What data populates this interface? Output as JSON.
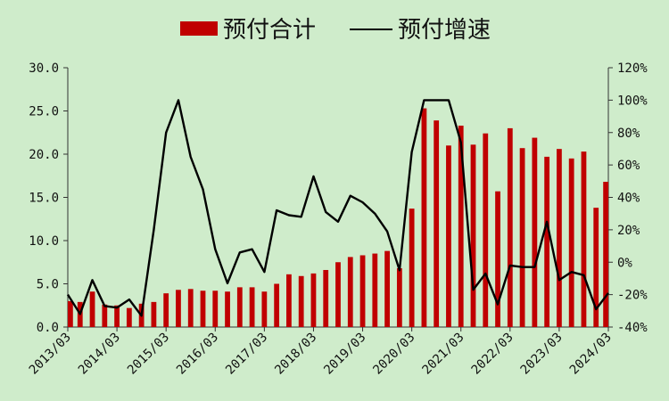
{
  "chart_data": {
    "type": "bar+line",
    "legend": {
      "position": "top",
      "items": [
        "预付合计",
        "预付增速"
      ]
    },
    "categories": [
      "2013/03",
      "2013/06",
      "2013/09",
      "2013/12",
      "2014/03",
      "2014/06",
      "2014/09",
      "2014/12",
      "2015/03",
      "2015/06",
      "2015/09",
      "2015/12",
      "2016/03",
      "2016/06",
      "2016/09",
      "2016/12",
      "2017/03",
      "2017/06",
      "2017/09",
      "2017/12",
      "2018/03",
      "2018/06",
      "2018/09",
      "2018/12",
      "2019/03",
      "2019/06",
      "2019/09",
      "2019/12",
      "2020/03",
      "2020/06",
      "2020/09",
      "2020/12",
      "2021/03",
      "2021/06",
      "2021/09",
      "2021/12",
      "2022/03",
      "2022/06",
      "2022/09",
      "2022/12",
      "2023/03",
      "2023/06",
      "2023/09",
      "2023/12",
      "2024/03"
    ],
    "x_tick_labels": [
      "2013/03",
      "2014/03",
      "2015/03",
      "2016/03",
      "2017/03",
      "2018/03",
      "2019/03",
      "2020/03",
      "2021/03",
      "2022/03",
      "2023/03",
      "2024/03"
    ],
    "series": [
      {
        "name": "预付合计",
        "type": "bar",
        "axis": "left",
        "color": "#c00000",
        "values": [
          3.0,
          2.9,
          4.1,
          2.6,
          2.5,
          2.2,
          2.7,
          2.9,
          3.9,
          4.3,
          4.4,
          4.2,
          4.2,
          4.1,
          4.6,
          4.6,
          4.1,
          5.0,
          6.1,
          5.9,
          6.2,
          6.6,
          7.5,
          8.1,
          8.3,
          8.5,
          8.8,
          6.8,
          13.7,
          25.3,
          23.9,
          21.0,
          23.3,
          21.1,
          22.4,
          15.7,
          23.0,
          20.7,
          21.9,
          19.7,
          20.6,
          19.5,
          20.3,
          13.8,
          16.8
        ]
      },
      {
        "name": "预付增速",
        "type": "line",
        "axis": "right",
        "color": "#000000",
        "values": [
          -20,
          -32,
          -11,
          -27,
          -28,
          -23,
          -33,
          20,
          80,
          100,
          65,
          45,
          8,
          -13,
          6,
          8,
          -6,
          32,
          29,
          28,
          53,
          31,
          25,
          41,
          37,
          30,
          19,
          -5,
          68,
          100,
          100,
          100,
          74,
          -17,
          -7,
          -26,
          -2,
          -3,
          -3,
          25,
          -11,
          -6,
          -8,
          -29,
          -19
        ]
      }
    ],
    "y_left": {
      "range": [
        0,
        30
      ],
      "ticks": [
        "0.0",
        "5.0",
        "10.0",
        "15.0",
        "20.0",
        "25.0",
        "30.0"
      ]
    },
    "y_right": {
      "range": [
        -40,
        120
      ],
      "ticks": [
        "-40%",
        "-20%",
        "0%",
        "20%",
        "40%",
        "60%",
        "80%",
        "100%",
        "120%"
      ]
    },
    "grid": false
  }
}
